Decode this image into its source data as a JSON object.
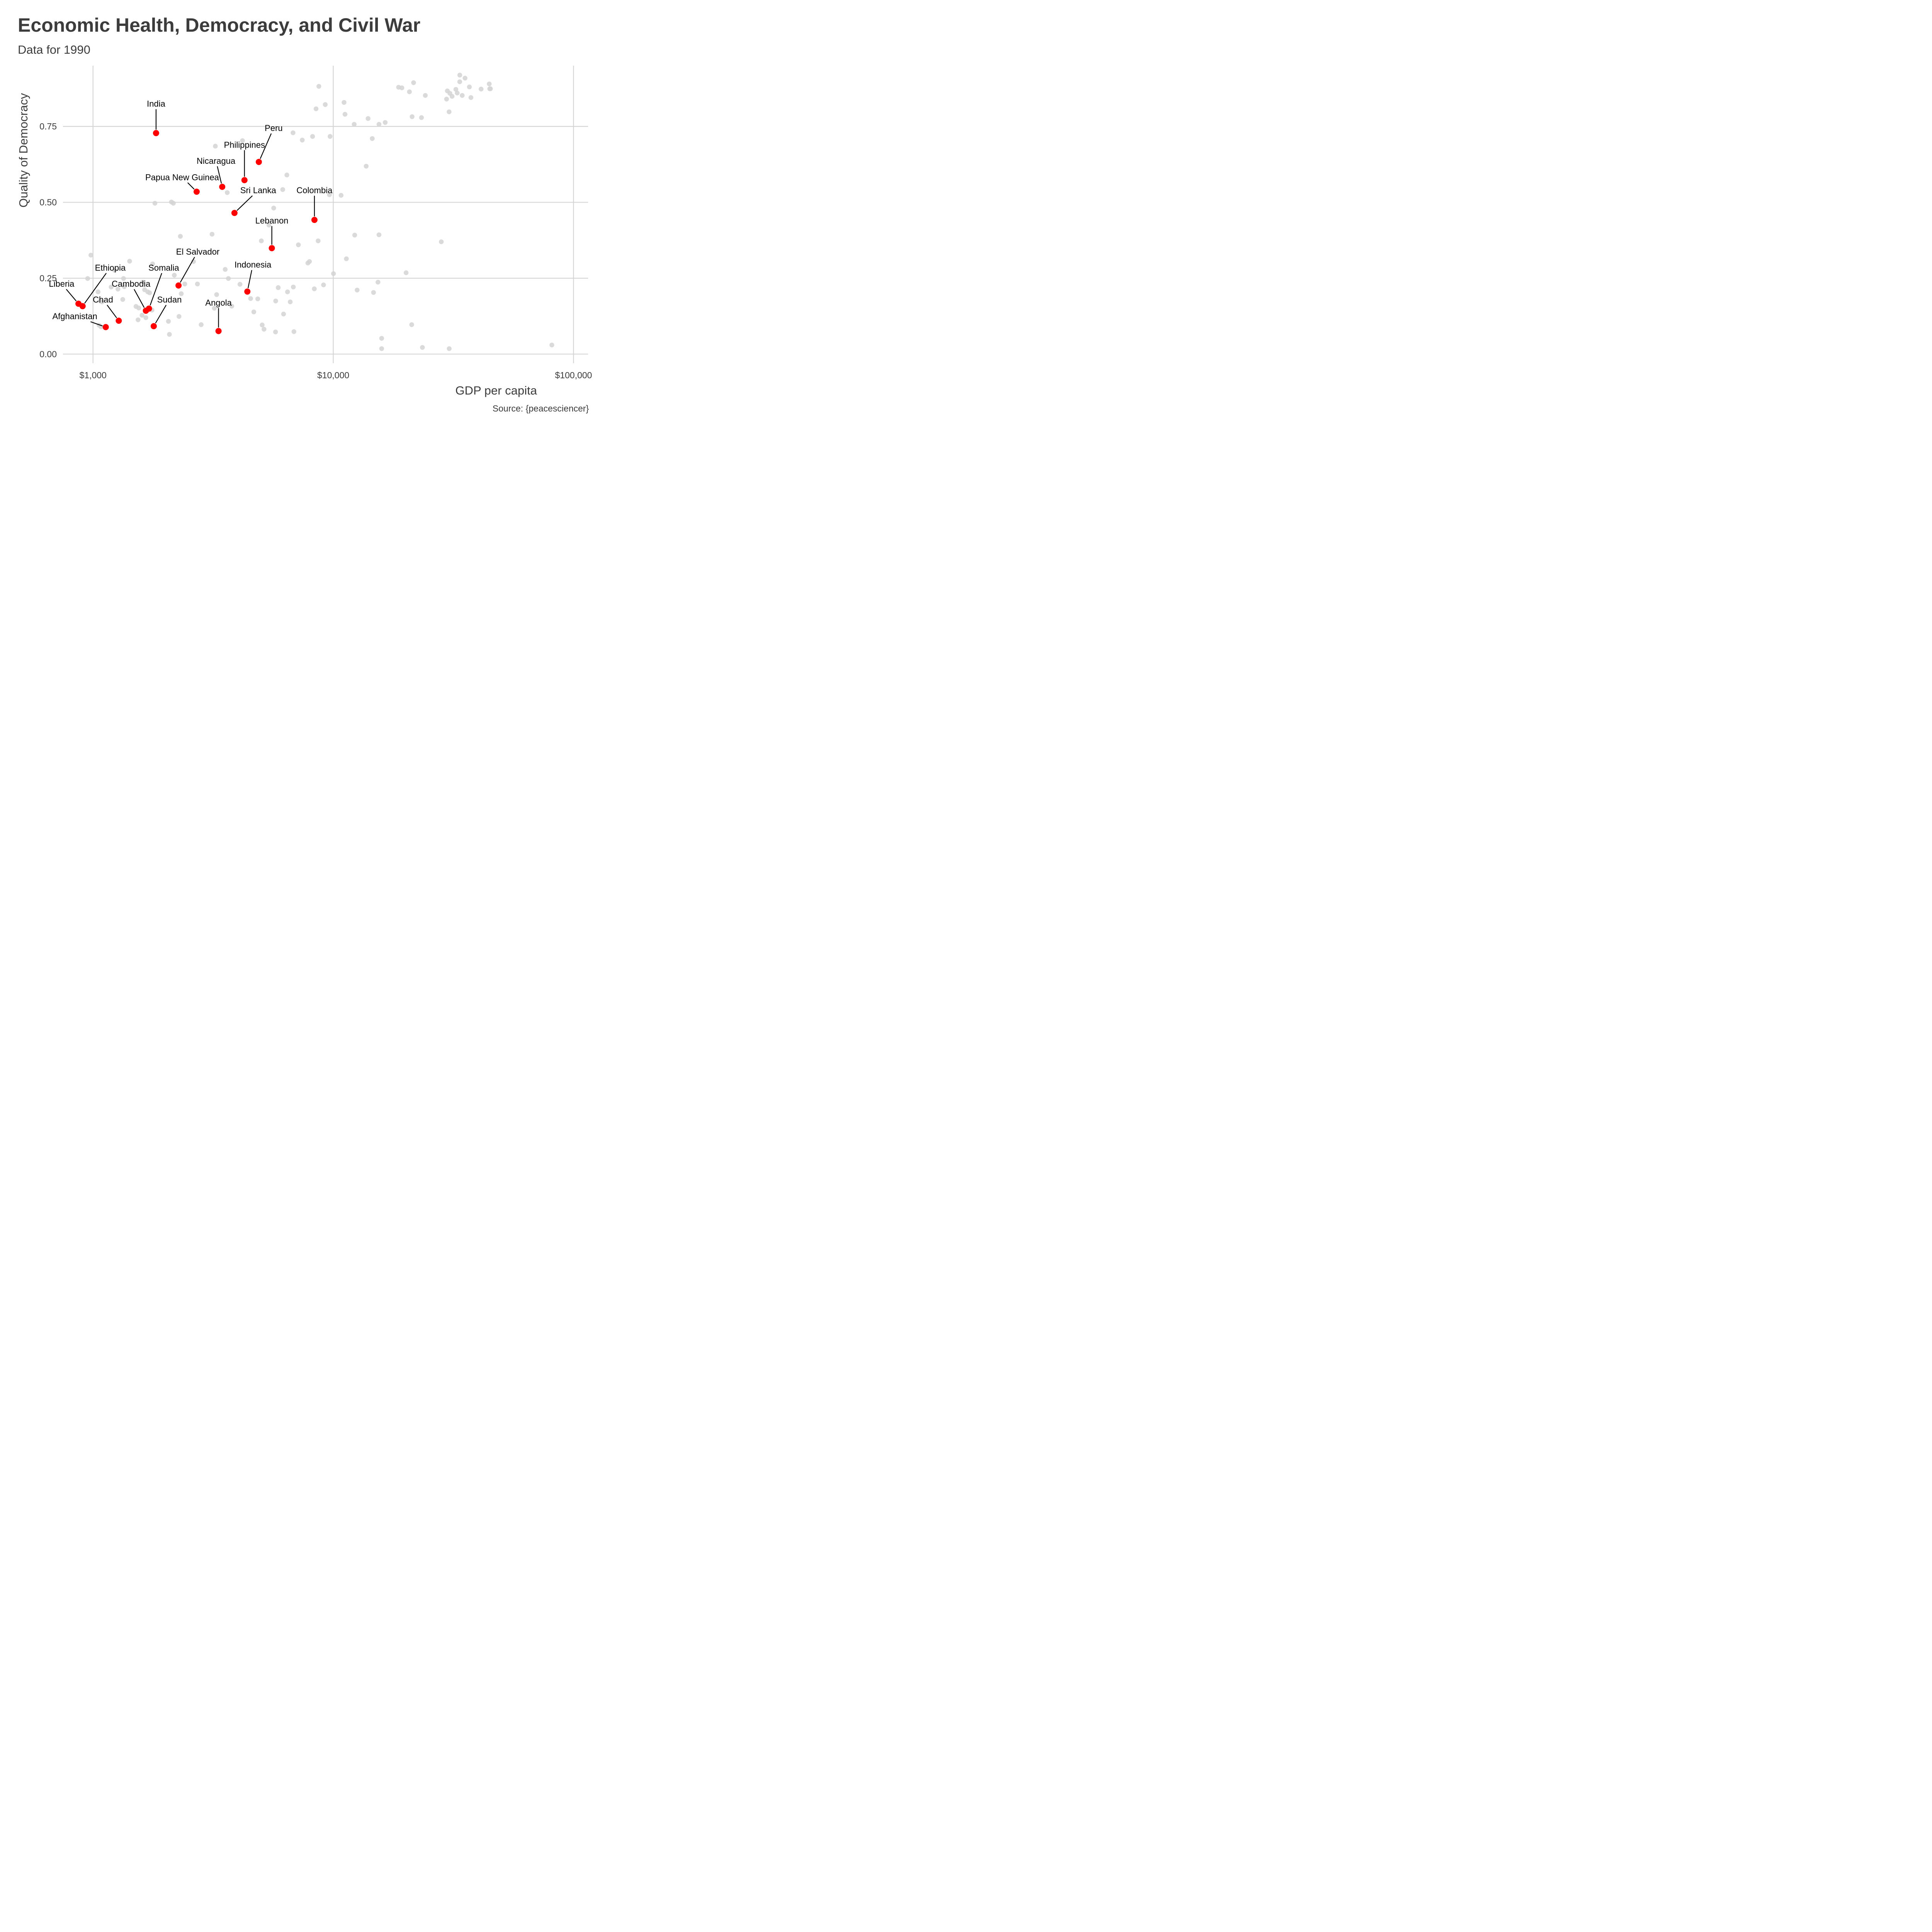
{
  "chart_data": {
    "type": "scatter",
    "title": "Economic Health, Democracy, and Civil War",
    "subtitle": "Data for 1990",
    "caption": "Source: {peacesciencer}",
    "xlabel": "GDP per capita",
    "ylabel": "Quality of Democracy",
    "x_scale": "log10",
    "xlim": [
      750,
      115000
    ],
    "ylim": [
      -0.03,
      0.95
    ],
    "x_ticks": [
      {
        "value": 1000,
        "label": "$1,000"
      },
      {
        "value": 10000,
        "label": "$10,000"
      },
      {
        "value": 100000,
        "label": "$100,000"
      }
    ],
    "y_ticks": [
      {
        "value": 0,
        "label": "0.00"
      },
      {
        "value": 0.25,
        "label": "0.25"
      },
      {
        "value": 0.5,
        "label": "0.50"
      },
      {
        "value": 0.75,
        "label": "0.75"
      }
    ],
    "grid": true,
    "colors": {
      "civil_war": "#ff0000",
      "other": "#d3d3d3"
    },
    "highlighted": [
      {
        "name": "India",
        "x": 1830,
        "y": 0.728,
        "label_x": 1830,
        "label_y": 0.825
      },
      {
        "name": "Peru",
        "x": 4900,
        "y": 0.633,
        "label_x": 5650,
        "label_y": 0.745
      },
      {
        "name": "Philippines",
        "x": 4270,
        "y": 0.573,
        "label_x": 4270,
        "label_y": 0.69
      },
      {
        "name": "Nicaragua",
        "x": 3450,
        "y": 0.551,
        "label_x": 3250,
        "label_y": 0.637
      },
      {
        "name": "Papua New Guinea",
        "x": 2700,
        "y": 0.535,
        "label_x": 2350,
        "label_y": 0.583
      },
      {
        "name": "Sri Lanka",
        "x": 3880,
        "y": 0.465,
        "label_x": 4870,
        "label_y": 0.54
      },
      {
        "name": "Colombia",
        "x": 8350,
        "y": 0.442,
        "label_x": 8350,
        "label_y": 0.54
      },
      {
        "name": "Lebanon",
        "x": 5550,
        "y": 0.349,
        "label_x": 5550,
        "label_y": 0.44
      },
      {
        "name": "El Salvador",
        "x": 2270,
        "y": 0.226,
        "label_x": 2730,
        "label_y": 0.338
      },
      {
        "name": "Indonesia",
        "x": 4390,
        "y": 0.206,
        "label_x": 4630,
        "label_y": 0.295
      },
      {
        "name": "Ethiopia",
        "x": 905,
        "y": 0.158,
        "label_x": 1180,
        "label_y": 0.285
      },
      {
        "name": "Somalia",
        "x": 1710,
        "y": 0.15,
        "label_x": 1970,
        "label_y": 0.285
      },
      {
        "name": "Liberia",
        "x": 870,
        "y": 0.166,
        "label_x": 740,
        "label_y": 0.232
      },
      {
        "name": "Cambodia",
        "x": 1660,
        "y": 0.143,
        "label_x": 1440,
        "label_y": 0.232
      },
      {
        "name": "Chad",
        "x": 1280,
        "y": 0.11,
        "label_x": 1100,
        "label_y": 0.18
      },
      {
        "name": "Sudan",
        "x": 1790,
        "y": 0.092,
        "label_x": 2080,
        "label_y": 0.18
      },
      {
        "name": "Angola",
        "x": 3330,
        "y": 0.076,
        "label_x": 3330,
        "label_y": 0.17
      },
      {
        "name": "Afghanistan",
        "x": 1130,
        "y": 0.089,
        "label_x": 840,
        "label_y": 0.125
      }
    ],
    "others": [
      [
        980,
        0.326
      ],
      [
        950,
        0.249
      ],
      [
        1050,
        0.205
      ],
      [
        1070,
        0.175
      ],
      [
        1090,
        0.172
      ],
      [
        1060,
        0.095
      ],
      [
        1080,
        0.09
      ],
      [
        1230,
        0.276
      ],
      [
        1190,
        0.221
      ],
      [
        1270,
        0.214
      ],
      [
        1340,
        0.249
      ],
      [
        1350,
        0.222
      ],
      [
        1330,
        0.18
      ],
      [
        1420,
        0.306
      ],
      [
        1510,
        0.157
      ],
      [
        1550,
        0.152
      ],
      [
        1540,
        0.113
      ],
      [
        1610,
        0.237
      ],
      [
        1640,
        0.212
      ],
      [
        1600,
        0.128
      ],
      [
        1660,
        0.12
      ],
      [
        1690,
        0.205
      ],
      [
        1720,
        0.202
      ],
      [
        1760,
        0.145
      ],
      [
        1770,
        0.297
      ],
      [
        1810,
        0.497
      ],
      [
        2060,
        0.108
      ],
      [
        2080,
        0.065
      ],
      [
        2120,
        0.501
      ],
      [
        2160,
        0.497
      ],
      [
        2180,
        0.26
      ],
      [
        2280,
        0.124
      ],
      [
        2310,
        0.388
      ],
      [
        2330,
        0.199
      ],
      [
        2410,
        0.231
      ],
      [
        2620,
        0.305
      ],
      [
        2720,
        0.231
      ],
      [
        2820,
        0.097
      ],
      [
        3130,
        0.395
      ],
      [
        3200,
        0.151
      ],
      [
        3230,
        0.685
      ],
      [
        3270,
        0.196
      ],
      [
        3550,
        0.279
      ],
      [
        3620,
        0.532
      ],
      [
        3660,
        0.249
      ],
      [
        3780,
        0.158
      ],
      [
        4090,
        0.23
      ],
      [
        4190,
        0.703
      ],
      [
        4530,
        0.183
      ],
      [
        4670,
        0.139
      ],
      [
        4850,
        0.182
      ],
      [
        5020,
        0.373
      ],
      [
        5060,
        0.096
      ],
      [
        5150,
        0.082
      ],
      [
        5400,
        0.425
      ],
      [
        5650,
        0.481
      ],
      [
        5750,
        0.073
      ],
      [
        5760,
        0.175
      ],
      [
        5900,
        0.219
      ],
      [
        6160,
        0.542
      ],
      [
        6210,
        0.132
      ],
      [
        6410,
        0.59
      ],
      [
        6450,
        0.205
      ],
      [
        6620,
        0.172
      ],
      [
        6800,
        0.729
      ],
      [
        6820,
        0.221
      ],
      [
        6860,
        0.074
      ],
      [
        7160,
        0.36
      ],
      [
        7430,
        0.705
      ],
      [
        7840,
        0.3
      ],
      [
        7960,
        0.305
      ],
      [
        8200,
        0.717
      ],
      [
        8340,
        0.215
      ],
      [
        8480,
        0.808
      ],
      [
        8650,
        0.373
      ],
      [
        8710,
        0.882
      ],
      [
        9110,
        0.228
      ],
      [
        9260,
        0.822
      ],
      [
        9640,
        0.525
      ],
      [
        9700,
        0.717
      ],
      [
        10020,
        0.265
      ],
      [
        10780,
        0.523
      ],
      [
        11090,
        0.829
      ],
      [
        11190,
        0.79
      ],
      [
        11340,
        0.314
      ],
      [
        12220,
        0.757
      ],
      [
        12280,
        0.392
      ],
      [
        12570,
        0.211
      ],
      [
        13710,
        0.619
      ],
      [
        13960,
        0.776
      ],
      [
        14530,
        0.71
      ],
      [
        14710,
        0.203
      ],
      [
        15350,
        0.237
      ],
      [
        15500,
        0.393
      ],
      [
        15500,
        0.757
      ],
      [
        15900,
        0.052
      ],
      [
        15900,
        0.018
      ],
      [
        16450,
        0.763
      ],
      [
        18700,
        0.879
      ],
      [
        19300,
        0.877
      ],
      [
        20100,
        0.268
      ],
      [
        20750,
        0.864
      ],
      [
        21210,
        0.097
      ],
      [
        21290,
        0.782
      ],
      [
        21590,
        0.894
      ],
      [
        23290,
        0.779
      ],
      [
        23500,
        0.022
      ],
      [
        24160,
        0.852
      ],
      [
        28160,
        0.37
      ],
      [
        29620,
        0.84
      ],
      [
        29850,
        0.867
      ],
      [
        30350,
        0.798
      ],
      [
        30380,
        0.018
      ],
      [
        30580,
        0.859
      ],
      [
        31230,
        0.849
      ],
      [
        32380,
        0.872
      ],
      [
        32800,
        0.86
      ],
      [
        33600,
        0.897
      ],
      [
        33620,
        0.919
      ],
      [
        34410,
        0.852
      ],
      [
        35360,
        0.909
      ],
      [
        36860,
        0.88
      ],
      [
        37410,
        0.845
      ],
      [
        41240,
        0.873
      ],
      [
        44590,
        0.89
      ],
      [
        44800,
        0.874
      ],
      [
        45100,
        0.874
      ],
      [
        81250,
        0.03
      ]
    ]
  }
}
